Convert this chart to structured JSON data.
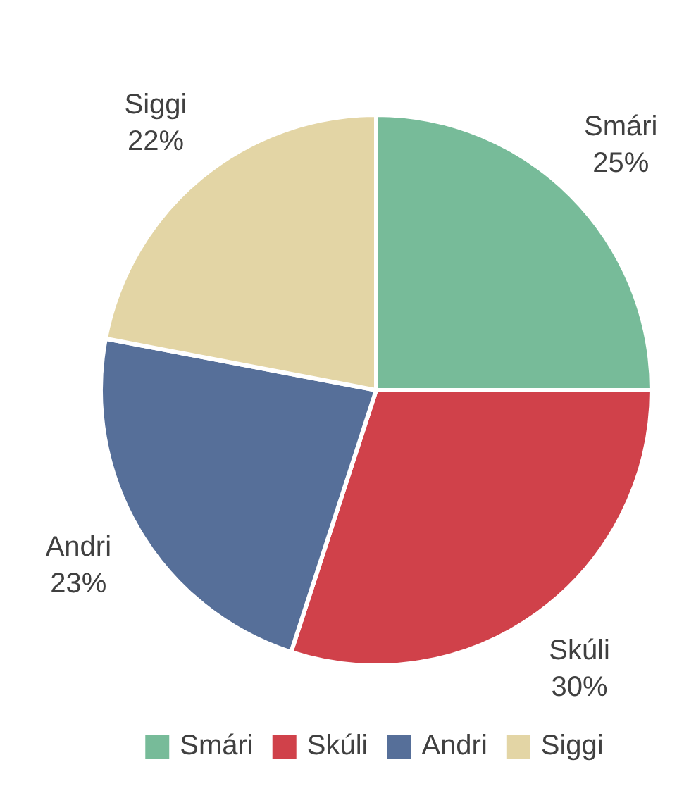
{
  "chart_data": {
    "type": "pie",
    "categories": [
      "Smári",
      "Skúli",
      "Andri",
      "Siggi"
    ],
    "values": [
      25,
      30,
      23,
      22
    ],
    "colors": [
      "#77bb99",
      "#d0414a",
      "#566f99",
      "#e3d5a5"
    ],
    "value_labels": [
      "25%",
      "30%",
      "23%",
      "22%"
    ],
    "legend": "bottom"
  }
}
